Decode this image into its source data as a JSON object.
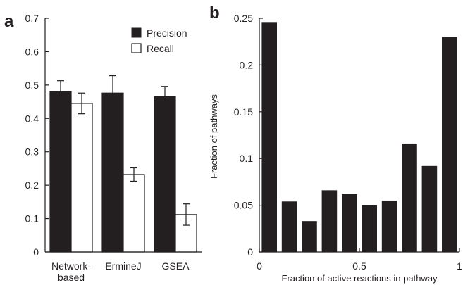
{
  "chart_data": [
    {
      "panel": "a",
      "type": "bar",
      "categories": [
        "Network-\nbased",
        "ErmineJ",
        "GSEA"
      ],
      "series": [
        {
          "name": "Precision",
          "values": [
            0.48,
            0.476,
            0.465
          ],
          "errors": [
            0.033,
            0.052,
            0.031
          ],
          "color": "#231f20"
        },
        {
          "name": "Recall",
          "values": [
            0.445,
            0.232,
            0.112
          ],
          "errors": [
            0.031,
            0.02,
            0.032
          ],
          "color": "#ffffff"
        }
      ],
      "ylim": [
        0,
        0.7
      ],
      "yticks": [
        "0",
        "0.1",
        "0.2",
        "0.3",
        "0.4",
        "0.5",
        "0.6",
        "0.7"
      ],
      "xlabel": "",
      "ylabel": "",
      "legend": "top-right",
      "grid": false
    },
    {
      "panel": "b",
      "type": "bar",
      "values": [
        0.246,
        0.054,
        0.033,
        0.066,
        0.062,
        0.05,
        0.055,
        0.116,
        0.092,
        0.23
      ],
      "bin_centers": [
        0.05,
        0.15,
        0.25,
        0.35,
        0.45,
        0.55,
        0.65,
        0.75,
        0.85,
        0.95
      ],
      "xlim": [
        0,
        1
      ],
      "ylim": [
        0,
        0.25
      ],
      "xticks": [
        "0",
        "0.5",
        "1"
      ],
      "yticks": [
        "0",
        "0.05",
        "0.1",
        "0.15",
        "0.2",
        "0.25"
      ],
      "xlabel": "Fraction of active reactions in pathway",
      "ylabel": "Fraction of pathways",
      "color": "#231f20",
      "grid": false
    }
  ]
}
